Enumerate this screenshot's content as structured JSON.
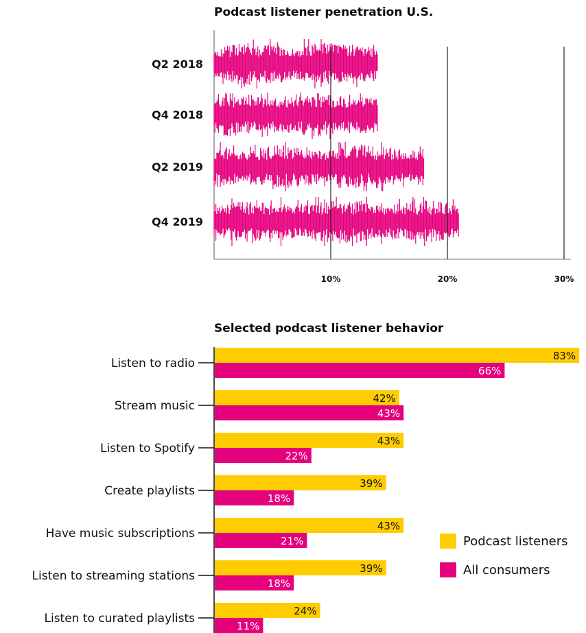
{
  "chart_data": [
    {
      "type": "bar",
      "title": "Podcast listener penetration U.S.",
      "categories": [
        "Q2 2018",
        "Q4 2018",
        "Q2 2019",
        "Q4 2019"
      ],
      "values": [
        14,
        14,
        18,
        21
      ],
      "unit": "%",
      "xlim": [
        0,
        30
      ],
      "xticks": [
        10,
        20,
        30
      ],
      "xtick_labels": [
        "10%",
        "20%",
        "30%"
      ],
      "grid": true,
      "bar_style": "audio-waveform",
      "color": "#e5007e"
    },
    {
      "type": "bar",
      "orientation": "horizontal",
      "title": "Selected podcast listener behavior",
      "categories": [
        "Listen to radio",
        "Stream music",
        "Listen to Spotify",
        "Create playlists",
        "Have music subscriptions",
        "Listen to streaming stations",
        "Listen to curated playlists"
      ],
      "series": [
        {
          "name": "Podcast listeners",
          "values": [
            83,
            42,
            43,
            39,
            43,
            39,
            24
          ],
          "labels": [
            "83%",
            "42%",
            "43%",
            "39%",
            "43%",
            "39%",
            "24%"
          ],
          "color": "#ffcc00"
        },
        {
          "name": "All consumers",
          "values": [
            66,
            43,
            22,
            18,
            21,
            18,
            11
          ],
          "labels": [
            "66%",
            "43%",
            "22%",
            "18%",
            "21%",
            "18%",
            "11%"
          ],
          "color": "#e5007e"
        }
      ],
      "xlim": [
        0,
        85
      ],
      "legend_position": "bottom-right"
    }
  ]
}
